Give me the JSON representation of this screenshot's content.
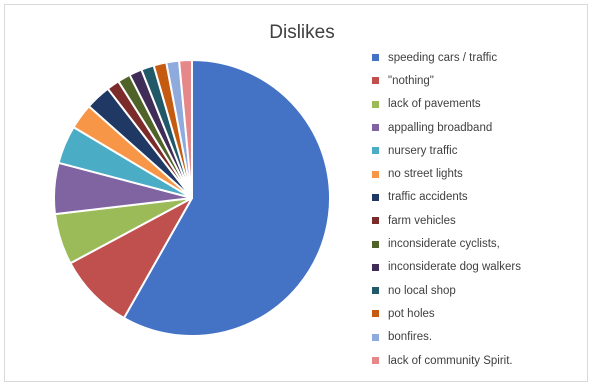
{
  "chart_data": {
    "type": "pie",
    "title": "Dislikes",
    "legend_position": "right",
    "categories": [
      "speeding cars / traffic",
      "\"nothing\"",
      "lack of pavements",
      "appalling broadband",
      "nursery traffic",
      "no street lights",
      "traffic accidents",
      "farm vehicles",
      "inconsiderate cyclists,",
      "inconsiderate dog walkers",
      "no local shop",
      "pot holes",
      "bonfires.",
      "lack of community Spirit."
    ],
    "values": [
      58.5,
      9.0,
      6.0,
      6.0,
      4.5,
      3.0,
      3.0,
      1.5,
      1.5,
      1.5,
      1.5,
      1.5,
      1.5,
      1.5
    ],
    "colors": [
      "#4472c4",
      "#c0504d",
      "#9bbb59",
      "#8064a2",
      "#4bacc6",
      "#f79646",
      "#1f3864",
      "#7b2c2a",
      "#4f6228",
      "#3f2d57",
      "#215968",
      "#c55a11",
      "#8faadc",
      "#e6888a"
    ]
  }
}
